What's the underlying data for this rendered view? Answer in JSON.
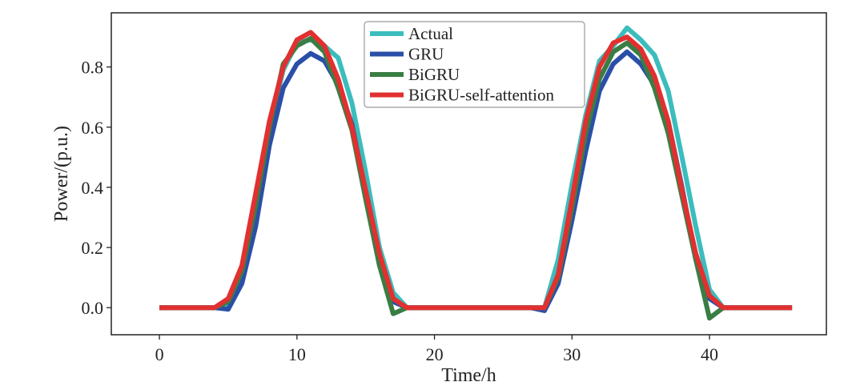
{
  "chart_data": {
    "type": "line",
    "title": "",
    "xlabel": "Time/h",
    "ylabel": "Power/(p.u.)",
    "xlim": [
      -3.5,
      48.5
    ],
    "ylim": [
      -0.09,
      0.98
    ],
    "xticks": [
      0,
      10,
      20,
      30,
      40
    ],
    "yticks": [
      0.0,
      0.2,
      0.4,
      0.6,
      0.8
    ],
    "xtick_labels": [
      "0",
      "10",
      "20",
      "30",
      "40"
    ],
    "ytick_labels": [
      "0.0",
      "0.2",
      "0.4",
      "0.6",
      "0.8"
    ],
    "grid": false,
    "legend_position": "top-center",
    "x": [
      0,
      1,
      2,
      3,
      4,
      5,
      6,
      7,
      8,
      9,
      10,
      11,
      12,
      13,
      14,
      15,
      16,
      17,
      18,
      19,
      20,
      21,
      22,
      23,
      24,
      25,
      26,
      27,
      28,
      29,
      30,
      31,
      32,
      33,
      34,
      35,
      36,
      37,
      38,
      39,
      40,
      41,
      42,
      43,
      44,
      45,
      46
    ],
    "series": [
      {
        "name": "Actual",
        "color": "#3bbdbd",
        "values": [
          0,
          0,
          0,
          0,
          0,
          0.01,
          0.12,
          0.35,
          0.6,
          0.79,
          0.88,
          0.89,
          0.87,
          0.83,
          0.68,
          0.45,
          0.2,
          0.05,
          0,
          0,
          0,
          0,
          0,
          0,
          0,
          0,
          0,
          0,
          0,
          0.16,
          0.41,
          0.64,
          0.82,
          0.87,
          0.93,
          0.89,
          0.84,
          0.72,
          0.5,
          0.27,
          0.06,
          0,
          0,
          0,
          0,
          0,
          0
        ]
      },
      {
        "name": "GRU",
        "color": "#2b4fa8",
        "values": [
          0,
          0,
          0,
          0,
          0,
          -0.005,
          0.08,
          0.27,
          0.54,
          0.73,
          0.81,
          0.845,
          0.82,
          0.74,
          0.61,
          0.38,
          0.14,
          0.02,
          0,
          0,
          0,
          0,
          0,
          0,
          0,
          0,
          0,
          0,
          -0.01,
          0.08,
          0.29,
          0.52,
          0.72,
          0.81,
          0.85,
          0.81,
          0.74,
          0.62,
          0.4,
          0.16,
          0.03,
          0,
          0,
          0,
          0,
          0,
          0
        ]
      },
      {
        "name": "BiGRU",
        "color": "#3a7d44",
        "values": [
          0,
          0,
          0,
          0,
          0,
          0.02,
          0.12,
          0.34,
          0.6,
          0.81,
          0.87,
          0.895,
          0.85,
          0.73,
          0.59,
          0.36,
          0.14,
          -0.02,
          0,
          0,
          0,
          0,
          0,
          0,
          0,
          0,
          0,
          0,
          0,
          0.1,
          0.33,
          0.58,
          0.76,
          0.85,
          0.88,
          0.84,
          0.73,
          0.58,
          0.37,
          0.16,
          -0.035,
          0,
          0,
          0,
          0,
          0,
          0
        ]
      },
      {
        "name": "BiGRU-self-attention",
        "color": "#e23030",
        "values": [
          0,
          0,
          0,
          0,
          0,
          0.03,
          0.14,
          0.38,
          0.62,
          0.8,
          0.89,
          0.915,
          0.87,
          0.76,
          0.6,
          0.39,
          0.18,
          0.03,
          0,
          0,
          0,
          0,
          0,
          0,
          0,
          0,
          0,
          0,
          0,
          0.11,
          0.36,
          0.62,
          0.8,
          0.88,
          0.9,
          0.86,
          0.77,
          0.62,
          0.39,
          0.18,
          0.04,
          0,
          0,
          0,
          0,
          0,
          0
        ]
      }
    ]
  }
}
